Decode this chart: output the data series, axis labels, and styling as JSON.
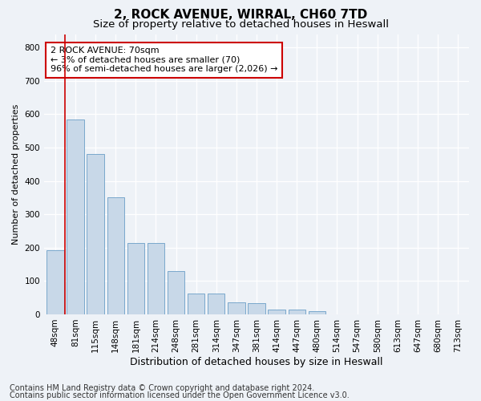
{
  "title1": "2, ROCK AVENUE, WIRRAL, CH60 7TD",
  "title2": "Size of property relative to detached houses in Heswall",
  "xlabel": "Distribution of detached houses by size in Heswall",
  "ylabel": "Number of detached properties",
  "categories": [
    "48sqm",
    "81sqm",
    "115sqm",
    "148sqm",
    "181sqm",
    "214sqm",
    "248sqm",
    "281sqm",
    "314sqm",
    "347sqm",
    "381sqm",
    "414sqm",
    "447sqm",
    "480sqm",
    "514sqm",
    "547sqm",
    "580sqm",
    "613sqm",
    "647sqm",
    "680sqm",
    "713sqm"
  ],
  "values": [
    192,
    585,
    480,
    352,
    215,
    215,
    130,
    63,
    63,
    35,
    33,
    15,
    15,
    10,
    0,
    0,
    0,
    0,
    0,
    0,
    0
  ],
  "bar_color": "#c8d8e8",
  "bar_edge_color": "#7aa8cc",
  "ylim": [
    0,
    840
  ],
  "yticks": [
    0,
    100,
    200,
    300,
    400,
    500,
    600,
    700,
    800
  ],
  "annotation_line1": "2 ROCK AVENUE: 70sqm",
  "annotation_line2": "← 3% of detached houses are smaller (70)",
  "annotation_line3": "96% of semi-detached houses are larger (2,026) →",
  "annotation_box_color": "#ffffff",
  "annotation_box_edge": "#cc0000",
  "red_line_x": 0.5,
  "footer1": "Contains HM Land Registry data © Crown copyright and database right 2024.",
  "footer2": "Contains public sector information licensed under the Open Government Licence v3.0.",
  "background_color": "#eef2f7",
  "plot_background": "#eef2f7",
  "grid_color": "#ffffff",
  "title1_fontsize": 11,
  "title2_fontsize": 9.5,
  "xlabel_fontsize": 9,
  "ylabel_fontsize": 8,
  "tick_fontsize": 7.5,
  "annotation_fontsize": 8,
  "footer_fontsize": 7
}
